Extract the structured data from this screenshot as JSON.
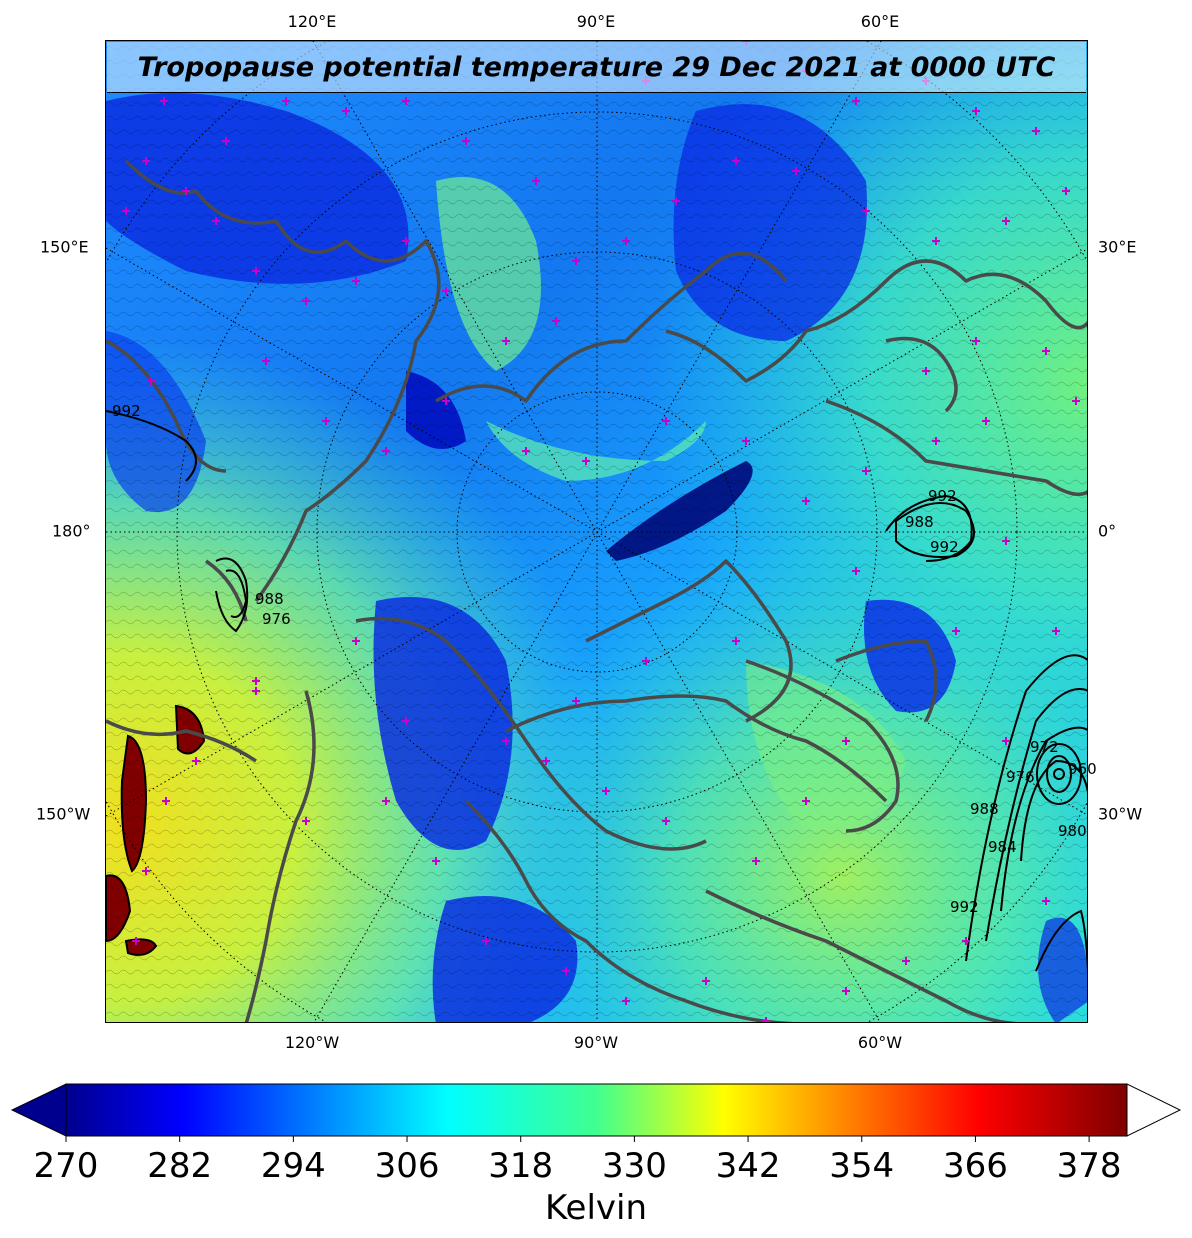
{
  "title": "Tropopause potential temperature 29 Dec 2021 at 0000 UTC",
  "graticule_labels": {
    "top": [
      "120°E",
      "90°E",
      "60°E"
    ],
    "bottom": [
      "120°W",
      "90°W",
      "60°W"
    ],
    "left": [
      "150°E",
      "180°",
      "150°W"
    ],
    "right": [
      "30°E",
      "0°",
      "30°W"
    ]
  },
  "pressure_contour_labels": [
    "992",
    "992",
    "992",
    "988",
    "988",
    "976",
    "992",
    "988",
    "984",
    "976",
    "972",
    "960",
    "980"
  ],
  "colorbar": {
    "label": "Kelvin",
    "ticks": [
      "270",
      "282",
      "294",
      "306",
      "318",
      "330",
      "342",
      "354",
      "366",
      "378"
    ],
    "min": 270,
    "max": 382,
    "extend": "both",
    "colormap": "jet"
  },
  "colors": {
    "coastline": "#4a4a4a",
    "marker": "#cc00cc",
    "contour": "#000000"
  }
}
